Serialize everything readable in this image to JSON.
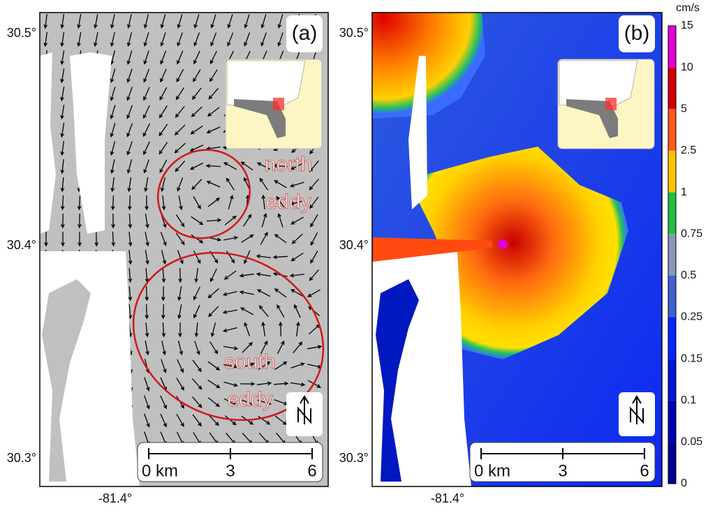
{
  "panels": [
    {
      "label": "(a)",
      "lat_labels": [
        "30.5°",
        "30.4°",
        "30.3°"
      ],
      "lon_label": "-81.4°",
      "scale_labels": [
        "0 km",
        "3",
        "6"
      ],
      "annotations": [
        {
          "lines": [
            "north",
            "eddy"
          ]
        },
        {
          "lines": [
            "south",
            "eddy"
          ]
        }
      ]
    },
    {
      "label": "(b)",
      "lat_labels": [
        "30.5°",
        "30.4°",
        "30.3°"
      ],
      "lon_label": "-81.4°",
      "scale_labels": [
        "0 km",
        "3",
        "6"
      ]
    }
  ],
  "colorbar": {
    "unit": "cm/s",
    "labels": [
      "15",
      "10",
      "5",
      "2.5",
      "1",
      "0.75",
      "0.5",
      "0.25",
      "0.15",
      "0.1",
      "0.05",
      "0"
    ],
    "colors": [
      "#e400d8",
      "#d40000",
      "#ff5a1e",
      "#ffc400",
      "#22c040",
      "#8898b8",
      "#4060d0",
      "#0028ff",
      "#0014d8",
      "#0000b4",
      "#000090"
    ]
  }
}
